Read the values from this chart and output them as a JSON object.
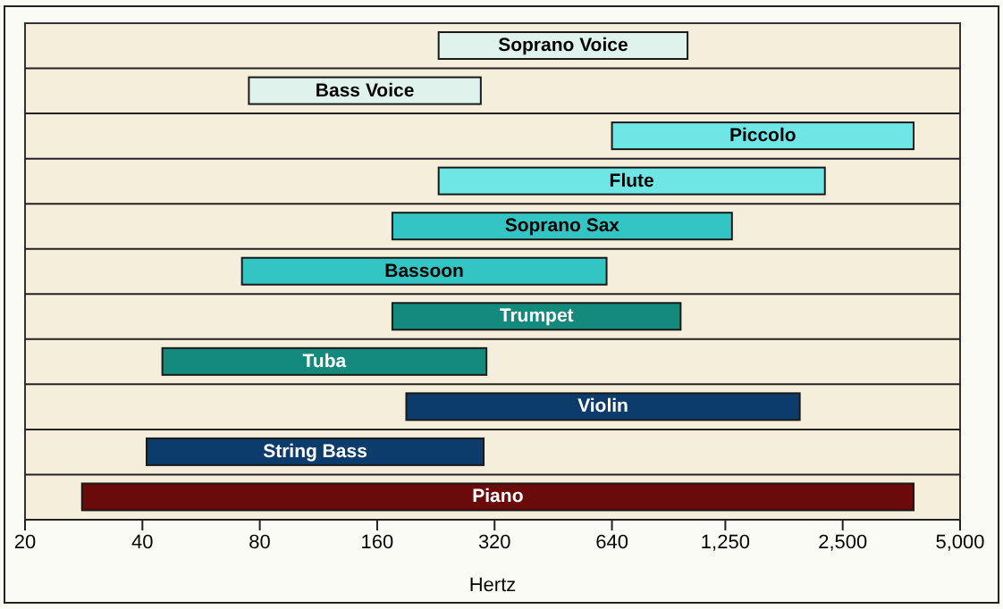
{
  "chart_data": {
    "type": "bar",
    "orientation": "horizontal",
    "xlabel": "Hertz",
    "log": "x",
    "grid": "y",
    "xlim": [
      20,
      5000
    ],
    "xticks": [
      20,
      40,
      80,
      160,
      320,
      640,
      {
        "value": 1250,
        "label": "1,250"
      },
      {
        "value": 2500,
        "label": "2,500"
      },
      {
        "value": 5000,
        "label": "5,000"
      }
    ],
    "categories": [
      null,
      null,
      null,
      null,
      null,
      null,
      null,
      null,
      null,
      null,
      null
    ],
    "series": [
      {
        "colors": [
          "#dff3ec",
          "#dff3ec",
          "#6ee6e6",
          "#6ee6e6",
          "#33c4c4",
          "#33c4c4",
          "#138a7c",
          "#138a7c",
          "#0c3c6c",
          "#0c3c6c",
          "#6a0a0a"
        ],
        "base": [
          230,
          75,
          640,
          230,
          175,
          72,
          175,
          45,
          190,
          41,
          28
        ],
        "values": [
          770,
          220,
          3160,
          2020,
          1125,
          548,
          785,
          260,
          1750,
          259,
          3772
        ],
        "value_labels": [
          "Soprano Voice",
          "Bass Voice",
          "Piccolo",
          "Flute",
          "Soprano Sax",
          "Bassoon",
          "Trumpet",
          "Tuba",
          "Violin",
          "String Bass",
          "Piano"
        ]
      }
    ]
  }
}
